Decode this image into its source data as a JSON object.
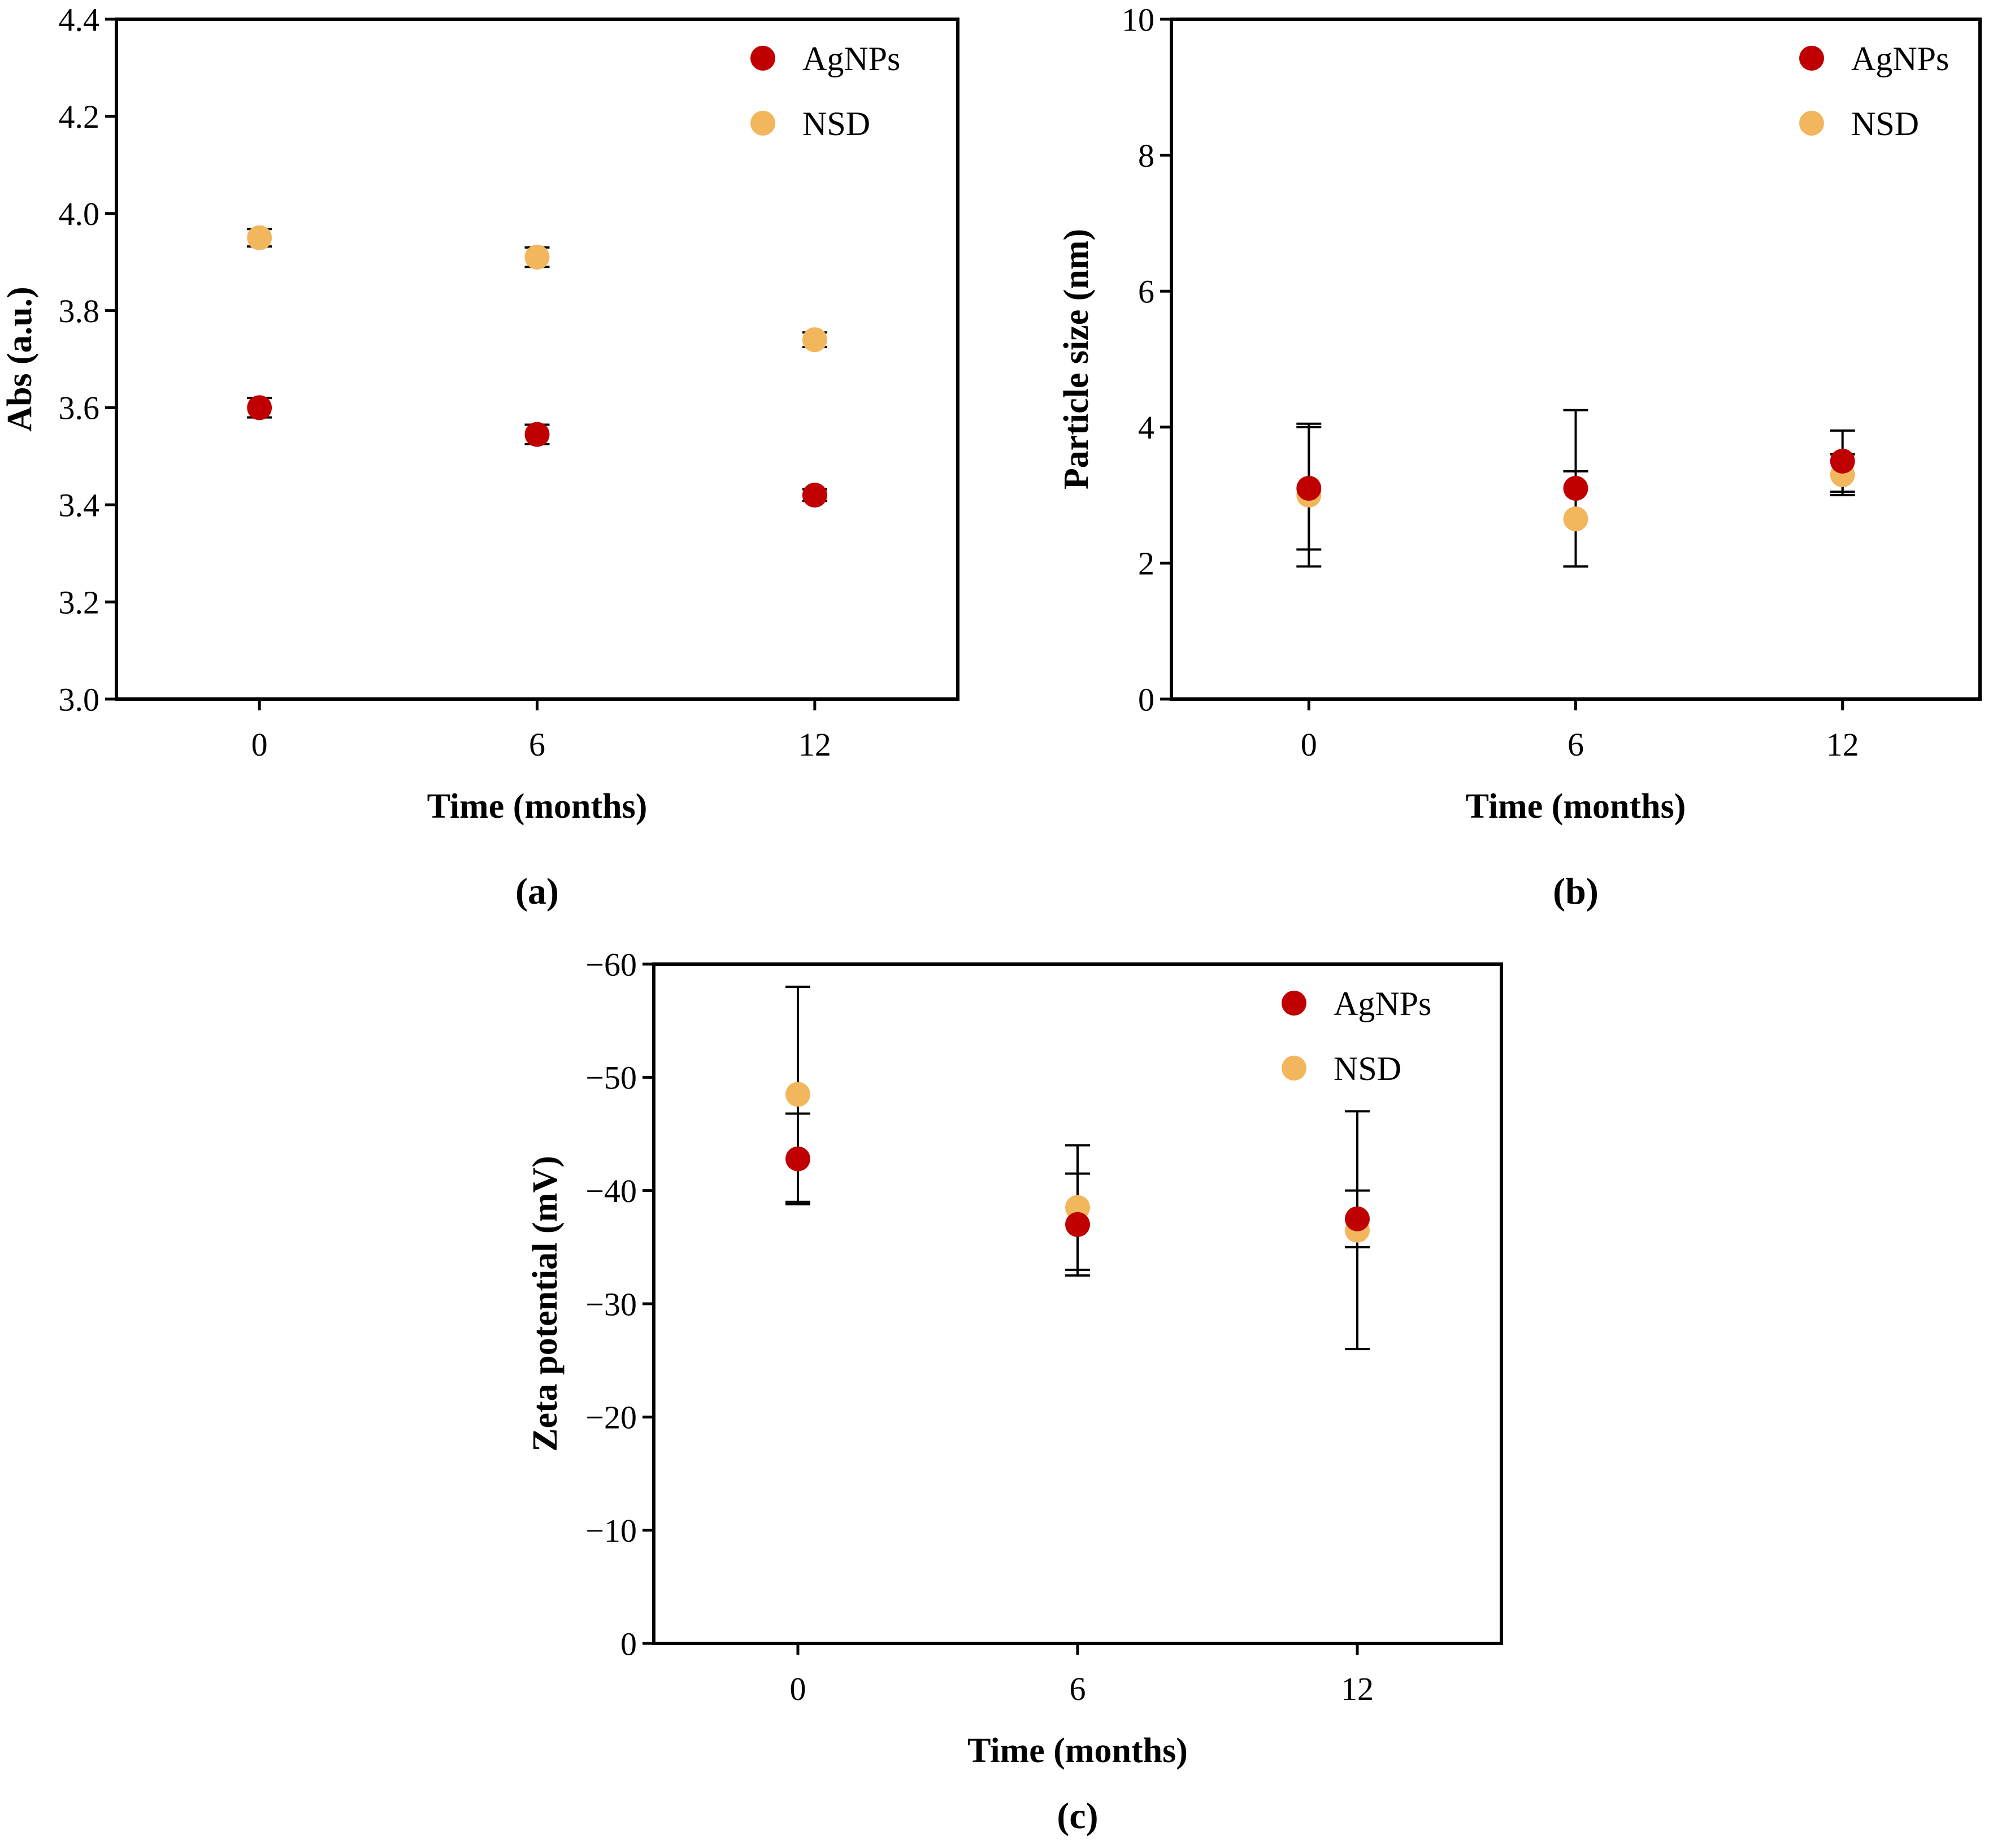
{
  "figure": {
    "captions": {
      "a": "(a)",
      "b": "(b)",
      "c": "(c)"
    }
  },
  "colors": {
    "agnps": "#C00000",
    "nsd": "#F2B65C",
    "axis": "#000000"
  },
  "chart_data": [
    {
      "id": "a",
      "type": "scatter",
      "title": "",
      "xlabel": "Time (months)",
      "ylabel": "Abs (a.u.)",
      "categories": [
        "0",
        "6",
        "12"
      ],
      "ylim": [
        3.0,
        4.4
      ],
      "yticks": [
        3.0,
        3.2,
        3.4,
        3.6,
        3.8,
        4.0,
        4.2,
        4.4
      ],
      "ytick_labels": [
        "3.0",
        "3.2",
        "3.4",
        "3.6",
        "3.8",
        "4.0",
        "4.2",
        "4.4"
      ],
      "legend_position": "top-right",
      "grid": false,
      "series": [
        {
          "name": "AgNPs",
          "color_key": "agnps",
          "values": [
            3.6,
            3.545,
            3.42
          ],
          "errors": [
            0.02,
            0.02,
            0.012
          ]
        },
        {
          "name": "NSD",
          "color_key": "nsd",
          "values": [
            3.95,
            3.91,
            3.74
          ],
          "errors": [
            0.018,
            0.02,
            0.015
          ]
        }
      ]
    },
    {
      "id": "b",
      "type": "scatter",
      "title": "",
      "xlabel": "Time (months)",
      "ylabel": "Particle size (nm)",
      "categories": [
        "0",
        "6",
        "12"
      ],
      "ylim": [
        0,
        10
      ],
      "yticks": [
        0,
        2,
        4,
        6,
        8,
        10
      ],
      "ytick_labels": [
        "0",
        "2",
        "4",
        "6",
        "8",
        "10"
      ],
      "legend_position": "top-right",
      "grid": false,
      "series": [
        {
          "name": "AgNPs",
          "color_key": "agnps",
          "values": [
            3.1,
            3.1,
            3.5
          ],
          "errors": [
            0.9,
            1.15,
            0.45
          ]
        },
        {
          "name": "NSD",
          "color_key": "nsd",
          "values": [
            3.0,
            2.65,
            3.3
          ],
          "errors": [
            1.05,
            0.7,
            0.3
          ]
        }
      ]
    },
    {
      "id": "c",
      "type": "scatter",
      "title": "",
      "xlabel": "Time (months)",
      "ylabel": "Zeta potential (mV)",
      "categories": [
        "0",
        "6",
        "12"
      ],
      "ylim": [
        0,
        -60
      ],
      "yticks": [
        0,
        -10,
        -20,
        -30,
        -40,
        -50,
        -60
      ],
      "ytick_labels": [
        "0",
        "−10",
        "−20",
        "−30",
        "−40",
        "−50",
        "−60"
      ],
      "legend_position": "top-right",
      "grid": false,
      "series": [
        {
          "name": "AgNPs",
          "color_key": "agnps",
          "values": [
            -42.8,
            -37.0,
            -37.5
          ],
          "errors": [
            4.0,
            4.5,
            2.5
          ]
        },
        {
          "name": "NSD",
          "color_key": "nsd",
          "values": [
            -48.5,
            -38.5,
            -36.5
          ],
          "errors": [
            9.5,
            5.5,
            10.5
          ]
        }
      ]
    }
  ]
}
